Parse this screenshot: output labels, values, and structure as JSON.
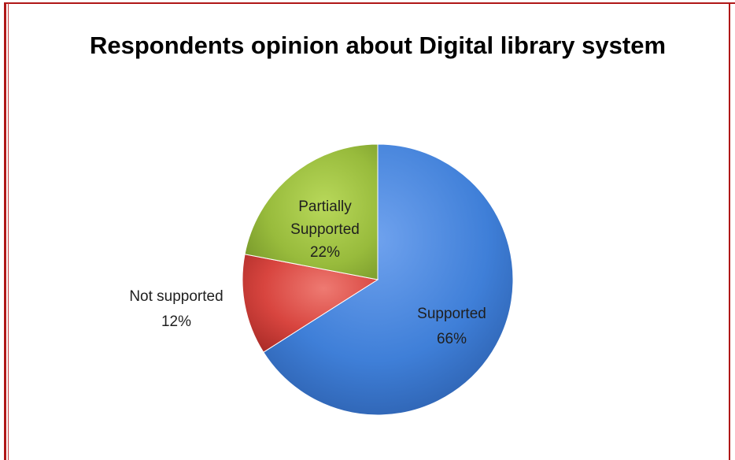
{
  "chart_data": {
    "type": "pie",
    "title": "Respondents opinion about Digital library system",
    "categories": [
      "Supported",
      "Not supported",
      "Partially Supported"
    ],
    "values": [
      66,
      12,
      22
    ],
    "labels": [
      {
        "name": "Supported",
        "value_text": "66%"
      },
      {
        "name": "Not supported",
        "value_text": "12%"
      },
      {
        "name": "Partially Supported",
        "value_text": "22%"
      }
    ],
    "colors": [
      "#3f7fd8",
      "#d8453f",
      "#98bb3c"
    ],
    "legend": "none"
  }
}
